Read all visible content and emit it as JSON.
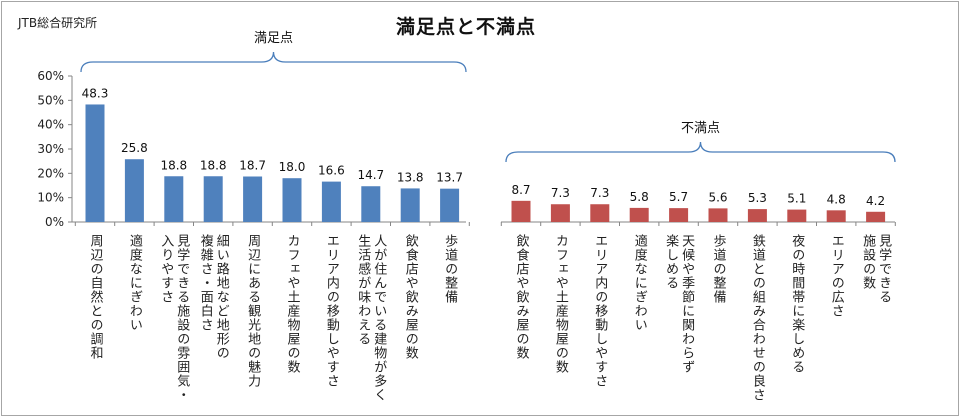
{
  "source_label": "JTB総合研究所",
  "chart_data": {
    "type": "bar",
    "title": "満足点と不満点",
    "ylim": [
      0,
      60
    ],
    "yticks": [
      "0%",
      "10%",
      "20%",
      "30%",
      "40%",
      "50%",
      "60%"
    ],
    "grid": false,
    "groups": [
      {
        "name": "満足点",
        "color": "#4f81bd",
        "categories": [
          "周辺の自然との調和",
          "適度なにぎわい",
          "見学できる施設の雰囲気・入りやすさ",
          "細い路地など地形の複雑さ・面白さ",
          "周辺にある観光地の魅力",
          "カフェや土産物屋の数",
          "エリア内の移動しやすさ",
          "人が住んでいる建物が多く生活感が味わえる",
          "飲食店や飲み屋の数",
          "歩道の整備"
        ],
        "category_lines": [
          [
            "周辺の自然との調和"
          ],
          [
            "適度なにぎわい"
          ],
          [
            "見学できる施設の雰囲気・",
            "入りやすさ"
          ],
          [
            "細い路地など地形の",
            "複雑さ・面白さ"
          ],
          [
            "周辺にある観光地の魅力"
          ],
          [
            "カフェや土産物屋の数"
          ],
          [
            "エリア内の移動しやすさ"
          ],
          [
            "人が住んでいる建物が多く",
            "生活感が味わえる"
          ],
          [
            "飲食店や飲み屋の数"
          ],
          [
            "歩道の整備"
          ]
        ],
        "values": [
          48.3,
          25.8,
          18.8,
          18.8,
          18.7,
          18.0,
          16.6,
          14.7,
          13.8,
          13.7
        ]
      },
      {
        "name": "不満点",
        "color": "#c0504d",
        "categories": [
          "飲食店や飲み屋の数",
          "カフェや土産物屋の数",
          "エリア内の移動しやすさ",
          "適度なにぎわい",
          "天候や季節に関わらず楽しめる",
          "歩道の整備",
          "鉄道との組み合わせの良さ",
          "夜の時間帯に楽しめる",
          "エリアの広さ",
          "見学できる施設の数"
        ],
        "category_lines": [
          [
            "飲食店や飲み屋の数"
          ],
          [
            "カフェや土産物屋の数"
          ],
          [
            "エリア内の移動しやすさ"
          ],
          [
            "適度なにぎわい"
          ],
          [
            "天候や季節に関わらず",
            "楽しめる"
          ],
          [
            "歩道の整備"
          ],
          [
            "鉄道との組み合わせの良さ"
          ],
          [
            "夜の時間帯に楽しめる"
          ],
          [
            "エリアの広さ"
          ],
          [
            "見学できる",
            "施設の数"
          ]
        ],
        "values": [
          8.7,
          7.3,
          7.3,
          5.8,
          5.7,
          5.6,
          5.3,
          5.1,
          4.8,
          4.2
        ]
      }
    ]
  }
}
